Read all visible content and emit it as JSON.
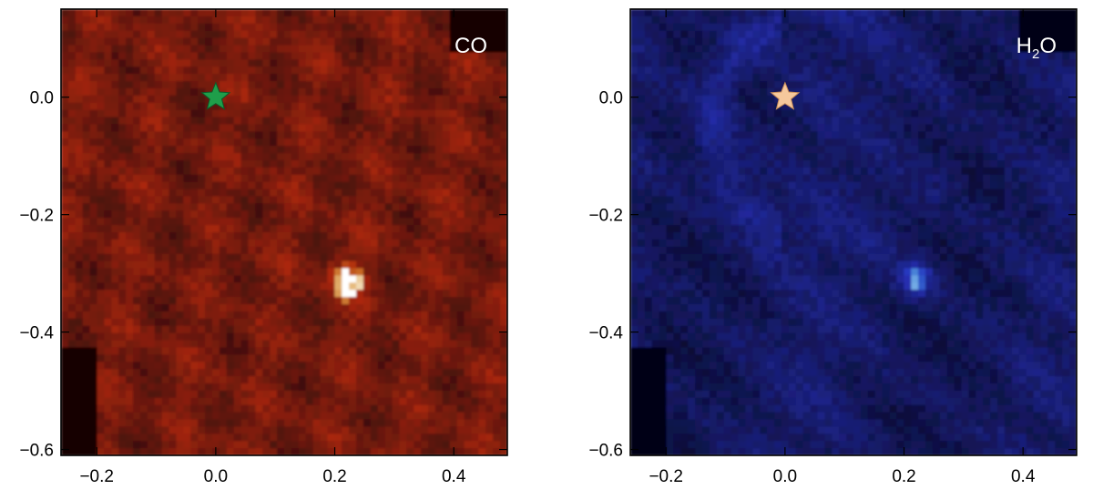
{
  "chart_data": [
    {
      "type": "heatmap",
      "label": "CO",
      "label_parts": [],
      "colormap": "red",
      "colors": {
        "background": "#8a1e0c",
        "dark": "#140606",
        "peak": "#ffffff"
      },
      "xlim": [
        -0.26,
        0.49
      ],
      "ylim": [
        -0.61,
        0.15
      ],
      "xticks": [
        -0.2,
        0.0,
        0.2,
        0.4
      ],
      "xtick_labels": [
        "−0.2",
        "0.0",
        "0.2",
        "0.4"
      ],
      "yticks": [
        0.0,
        -0.2,
        -0.4,
        -0.6
      ],
      "ytick_labels": [
        "0.0",
        "−0.2",
        "−0.4",
        "−0.6"
      ],
      "star": {
        "x": 0.0,
        "y": 0.0,
        "color": "#1f9e4a",
        "icon": "star-icon"
      },
      "source": {
        "x": 0.22,
        "y": -0.31,
        "brightness": "peak"
      },
      "masked_regions": [
        "top-right corner",
        "bottom-left corner"
      ]
    },
    {
      "type": "heatmap",
      "label": "",
      "label_parts": [
        "H",
        "2",
        "O"
      ],
      "colormap": "blue",
      "colors": {
        "background": "#1c2486",
        "dark": "#05051a",
        "peak": "#ffffff"
      },
      "xlim": [
        -0.26,
        0.49
      ],
      "ylim": [
        -0.61,
        0.15
      ],
      "xticks": [
        -0.2,
        0.0,
        0.2,
        0.4
      ],
      "xtick_labels": [
        "−0.2",
        "0.0",
        "0.2",
        "0.4"
      ],
      "yticks": [
        0.0,
        -0.2,
        -0.4,
        -0.6
      ],
      "ytick_labels": [
        "0.0",
        "−0.2",
        "−0.4",
        "−0.6"
      ],
      "star": {
        "x": 0.0,
        "y": 0.0,
        "color": "#f5c89c",
        "icon": "star-icon"
      },
      "source": {
        "x": 0.22,
        "y": -0.31,
        "brightness": "peak"
      },
      "masked_regions": [
        "top-right corner",
        "bottom-left corner"
      ]
    }
  ]
}
